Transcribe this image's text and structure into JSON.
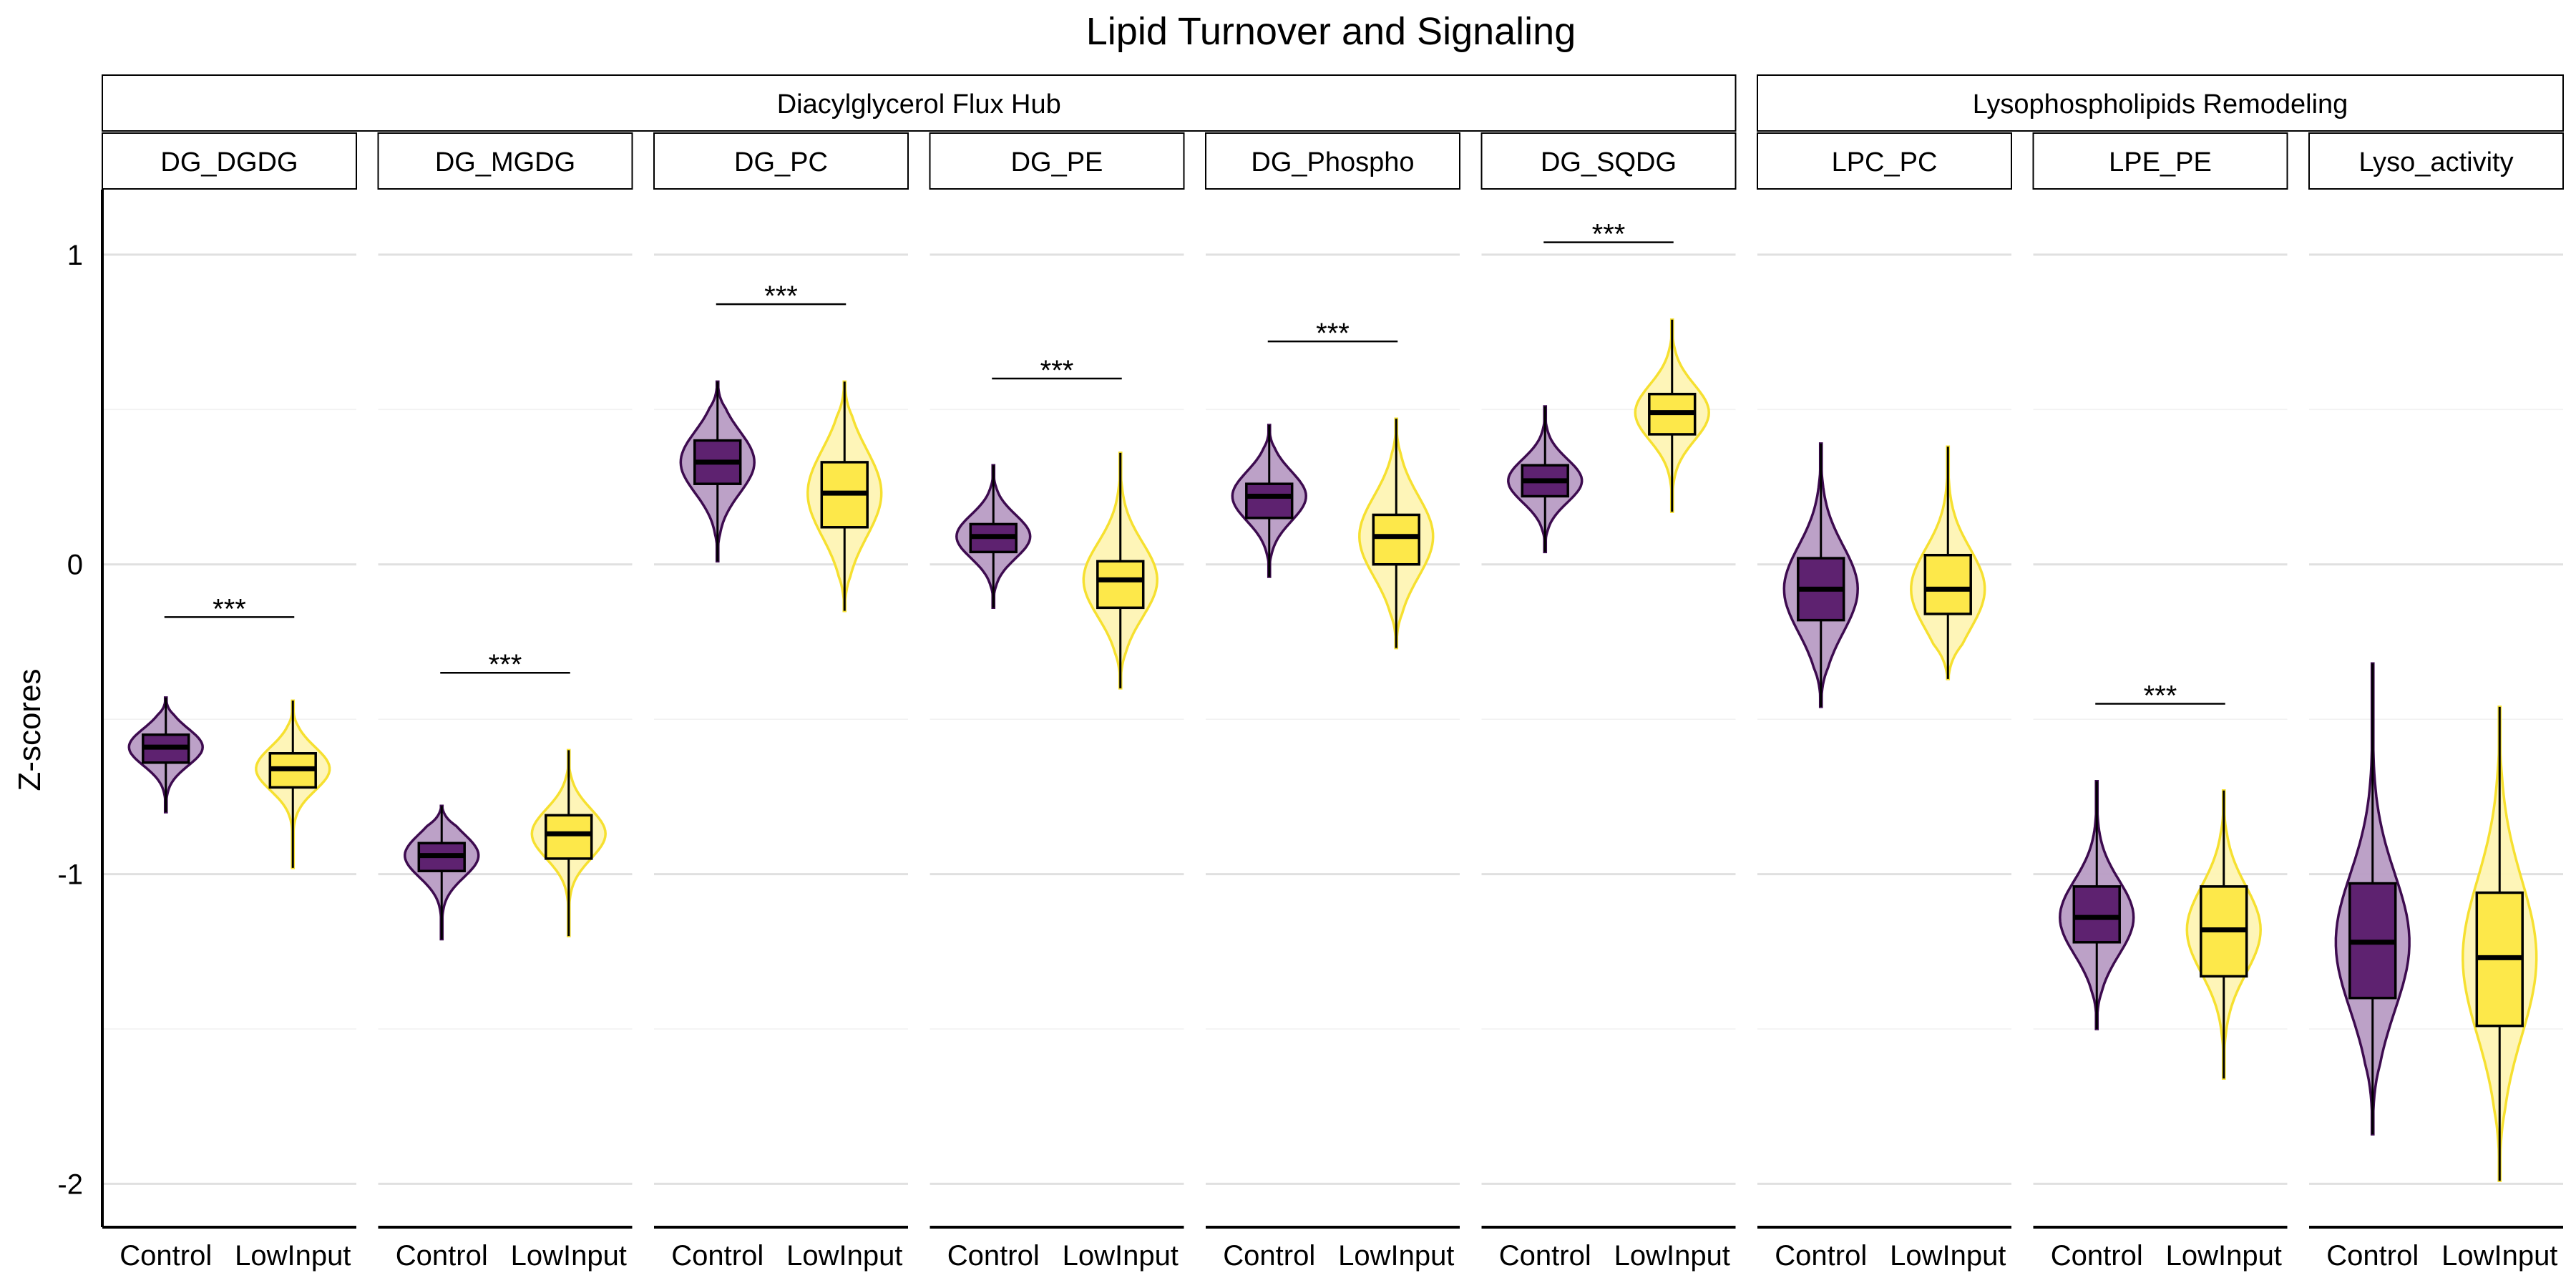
{
  "chart_data": {
    "type": "violin",
    "title": "Lipid Turnover and Signaling",
    "ylabel": "Z-scores",
    "xlabel": "",
    "ylim": [
      -2.14,
      1.21
    ],
    "yticks": [
      1,
      0,
      -1,
      -2
    ],
    "ytick_labels": [
      "1",
      "0",
      "-1",
      "-2"
    ],
    "grid": true,
    "groups": [
      "Control",
      "LowInput"
    ],
    "colors": {
      "Control": {
        "fill": "#5e2270",
        "violin_fill": "#b89cc4",
        "stroke": "#3d0b4f"
      },
      "LowInput": {
        "fill": "#fde84a",
        "violin_fill": "#fef4b4",
        "stroke": "#f6e030"
      }
    },
    "sections": [
      {
        "label": "Diacylglycerol Flux Hub",
        "panels": [
          "DG_DGDG",
          "DG_MGDG",
          "DG_PC",
          "DG_PE",
          "DG_Phospho",
          "DG_SQDG"
        ]
      },
      {
        "label": "Lysophospholipids Remodeling",
        "panels": [
          "LPC_PC",
          "LPE_PE",
          "Lyso_activity"
        ]
      }
    ],
    "panels": [
      {
        "name": "DG_DGDG",
        "significance": {
          "label": "***",
          "y": -0.17
        },
        "boxes": [
          {
            "group": "Control",
            "min": -0.8,
            "q1": -0.64,
            "median": -0.59,
            "q3": -0.55,
            "max": -0.43,
            "spread": 0.06
          },
          {
            "group": "LowInput",
            "min": -0.98,
            "q1": -0.72,
            "median": -0.66,
            "q3": -0.61,
            "max": -0.44,
            "spread": 0.07
          }
        ]
      },
      {
        "name": "DG_MGDG",
        "significance": {
          "label": "***",
          "y": -0.35
        },
        "boxes": [
          {
            "group": "Control",
            "min": -1.21,
            "q1": -0.99,
            "median": -0.94,
            "q3": -0.9,
            "max": -0.78,
            "spread": 0.07
          },
          {
            "group": "LowInput",
            "min": -1.2,
            "q1": -0.95,
            "median": -0.87,
            "q3": -0.81,
            "max": -0.6,
            "spread": 0.08
          }
        ]
      },
      {
        "name": "DG_PC",
        "significance": {
          "label": "***",
          "y": 0.84
        },
        "boxes": [
          {
            "group": "Control",
            "min": 0.01,
            "q1": 0.26,
            "median": 0.33,
            "q3": 0.4,
            "max": 0.59,
            "spread": 0.1
          },
          {
            "group": "LowInput",
            "min": -0.15,
            "q1": 0.12,
            "median": 0.23,
            "q3": 0.33,
            "max": 0.59,
            "spread": 0.14
          }
        ]
      },
      {
        "name": "DG_PE",
        "significance": {
          "label": "***",
          "y": 0.6
        },
        "boxes": [
          {
            "group": "Control",
            "min": -0.14,
            "q1": 0.04,
            "median": 0.09,
            "q3": 0.13,
            "max": 0.32,
            "spread": 0.07
          },
          {
            "group": "LowInput",
            "min": -0.4,
            "q1": -0.14,
            "median": -0.05,
            "q3": 0.01,
            "max": 0.36,
            "spread": 0.12
          }
        ]
      },
      {
        "name": "DG_Phospho",
        "significance": {
          "label": "***",
          "y": 0.72
        },
        "boxes": [
          {
            "group": "Control",
            "min": -0.04,
            "q1": 0.15,
            "median": 0.22,
            "q3": 0.26,
            "max": 0.45,
            "spread": 0.08
          },
          {
            "group": "LowInput",
            "min": -0.27,
            "q1": 0.0,
            "median": 0.09,
            "q3": 0.16,
            "max": 0.47,
            "spread": 0.13
          }
        ]
      },
      {
        "name": "DG_SQDG",
        "significance": {
          "label": "***",
          "y": 1.04
        },
        "boxes": [
          {
            "group": "Control",
            "min": 0.04,
            "q1": 0.22,
            "median": 0.27,
            "q3": 0.32,
            "max": 0.51,
            "spread": 0.07
          },
          {
            "group": "LowInput",
            "min": 0.17,
            "q1": 0.42,
            "median": 0.49,
            "q3": 0.55,
            "max": 0.79,
            "spread": 0.09
          }
        ]
      },
      {
        "name": "LPC_PC",
        "significance": null,
        "boxes": [
          {
            "group": "Control",
            "min": -0.46,
            "q1": -0.18,
            "median": -0.08,
            "q3": 0.02,
            "max": 0.39,
            "spread": 0.14
          },
          {
            "group": "LowInput",
            "min": -0.37,
            "q1": -0.16,
            "median": -0.08,
            "q3": 0.03,
            "max": 0.38,
            "spread": 0.13
          }
        ]
      },
      {
        "name": "LPE_PE",
        "significance": {
          "label": "***",
          "y": -0.45
        },
        "boxes": [
          {
            "group": "Control",
            "min": -1.5,
            "q1": -1.22,
            "median": -1.14,
            "q3": -1.04,
            "max": -0.7,
            "spread": 0.12
          },
          {
            "group": "LowInput",
            "min": -1.66,
            "q1": -1.33,
            "median": -1.18,
            "q3": -1.04,
            "max": -0.73,
            "spread": 0.14
          }
        ]
      },
      {
        "name": "Lyso_activity",
        "significance": null,
        "boxes": [
          {
            "group": "Control",
            "min": -1.84,
            "q1": -1.4,
            "median": -1.22,
            "q3": -1.03,
            "max": -0.32,
            "spread": 0.22
          },
          {
            "group": "LowInput",
            "min": -1.99,
            "q1": -1.49,
            "median": -1.27,
            "q3": -1.06,
            "max": -0.46,
            "spread": 0.25
          }
        ]
      }
    ]
  }
}
